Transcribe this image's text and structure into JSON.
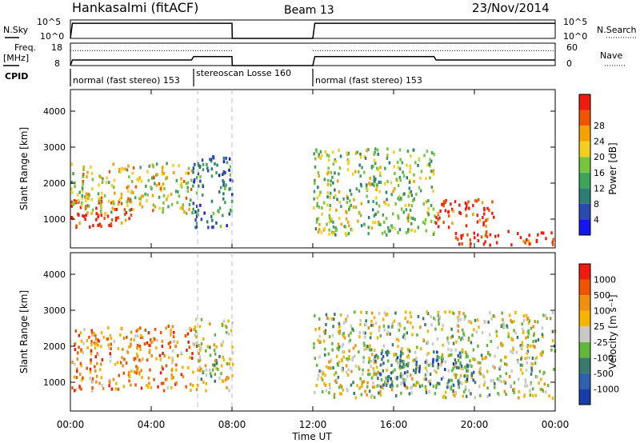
{
  "header": {
    "station": "Hankasalmi (fitACF)",
    "beam": "Beam 13",
    "date": "23/Nov/2014"
  },
  "chart_data": [
    {
      "name": "nsky-nsearch",
      "type": "line",
      "left_label": "N.Sky",
      "right_label": "N.Search",
      "left_ticks": [
        "10^5",
        "10^0"
      ],
      "right_ticks": [
        "10^5",
        "10^0"
      ],
      "x_hours": [
        0,
        0.1,
        8,
        8.01,
        12,
        12.1,
        24
      ],
      "nsky_log10": [
        0,
        4.1,
        4.1,
        0,
        0,
        4.1,
        4.1
      ]
    },
    {
      "name": "freq-nave",
      "type": "line",
      "left_label": "Freq.",
      "left_unit": "[MHz]",
      "right_label": "Nave",
      "left_ticks": [
        "18",
        "8"
      ],
      "right_ticks": [
        "60",
        "0"
      ],
      "freq_mhz": {
        "x_hours": [
          0,
          0.1,
          6,
          6.1,
          8,
          8.01,
          12,
          12.1,
          18,
          18.1,
          24
        ],
        "values": [
          8,
          10.5,
          10.5,
          12,
          12,
          8,
          8,
          12,
          12,
          10.5,
          10.5
        ]
      },
      "nave_level": 40
    },
    {
      "name": "cpid",
      "type": "table",
      "label": "CPID",
      "segments": [
        {
          "start_h": 0,
          "end_h": 6.1,
          "text": "normal (fast stereo) 153"
        },
        {
          "start_h": 6.1,
          "end_h": 8,
          "text": "stereoscan Losse 160"
        },
        {
          "start_h": 12,
          "end_h": 24,
          "text": "normal (fast stereo) 153"
        }
      ]
    },
    {
      "name": "power",
      "type": "heatmap",
      "ylabel": "Slant Range [km]",
      "yticks": [
        "1000",
        "2000",
        "3000",
        "4000"
      ],
      "ylim": [
        200,
        4600
      ],
      "xlim": [
        0,
        24
      ],
      "colorbar_label": "Power [dB]",
      "colorbar_ticks": [
        "4",
        "8",
        "12",
        "16",
        "20",
        "24",
        "28"
      ],
      "colors": [
        "#1515ef",
        "#2c49b0",
        "#2e7d74",
        "#3fa35a",
        "#77c440",
        "#f5cf20",
        "#f5a200",
        "#ef5500",
        "#ee1b10"
      ],
      "scatter_regions": [
        {
          "h0": 0,
          "h1": 3,
          "r0": 800,
          "r1": 1600,
          "level": 8
        },
        {
          "h0": 0,
          "h1": 6,
          "r0": 1200,
          "r1": 2600,
          "level": 5
        },
        {
          "h0": 6,
          "h1": 8,
          "r0": 800,
          "r1": 2800,
          "level": 2
        },
        {
          "h0": 12,
          "h1": 18,
          "r0": 600,
          "r1": 3000,
          "level": 4
        },
        {
          "h0": 18,
          "h1": 21,
          "r0": 800,
          "r1": 1600,
          "level": 8
        },
        {
          "h0": 19,
          "h1": 24,
          "r0": 300,
          "r1": 700,
          "level": 8
        }
      ]
    },
    {
      "name": "velocity",
      "type": "heatmap",
      "ylabel": "Slant Range [km]",
      "yticks": [
        "1000",
        "2000",
        "3000",
        "4000"
      ],
      "ylim": [
        200,
        4600
      ],
      "xlim": [
        0,
        24
      ],
      "xticks": [
        "00:00",
        "04:00",
        "08:00",
        "12:00",
        "16:00",
        "20:00",
        "00:00"
      ],
      "xlabel": "Time UT",
      "colorbar_label": "Velocity [m s⁻¹]",
      "colorbar_ticks": [
        "1000",
        "500",
        "100",
        "25",
        "-25",
        "-100",
        "-500",
        "-1000"
      ],
      "colors": [
        "#1a3ca8",
        "#3060b0",
        "#3a7a6c",
        "#62b83a",
        "#c8c8c4",
        "#f5b400",
        "#f09010",
        "#ef5500",
        "#ee1b10"
      ],
      "scatter_regions": [
        {
          "h0": 0,
          "h1": 6,
          "r0": 800,
          "r1": 2600,
          "level": 6
        },
        {
          "h0": 6,
          "h1": 8,
          "r0": 800,
          "r1": 2800,
          "level": 4
        },
        {
          "h0": 12,
          "h1": 24,
          "r0": 600,
          "r1": 3000,
          "level": 4
        },
        {
          "h0": 15,
          "h1": 20,
          "r0": 900,
          "r1": 1900,
          "level": 2
        }
      ]
    }
  ]
}
